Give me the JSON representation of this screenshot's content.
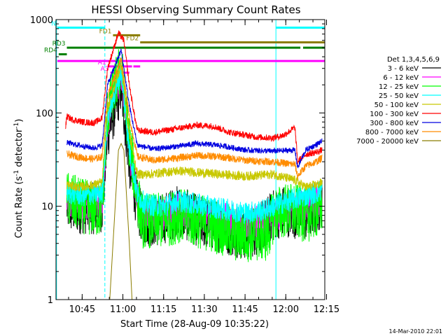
{
  "chart_data": {
    "type": "line",
    "title": "HESSI Observing Summary Count Rates",
    "xlabel": "Start Time (28-Aug-09 10:35:22)",
    "ylabel": "Count Rate (s⁻¹ detector⁻¹)",
    "ylabel_parts": {
      "pre": "Count Rate (s",
      "sup1": "-1",
      "mid": " detector",
      "sup2": "-1",
      "post": ")"
    },
    "yscale": "log",
    "ylim": [
      1,
      1000
    ],
    "xlim_minutes_from_start": [
      0,
      99
    ],
    "x_ticks": [
      "10:45",
      "11:00",
      "11:15",
      "11:30",
      "11:45",
      "12:00",
      "12:15"
    ],
    "y_ticks": [
      "1",
      "10",
      "100",
      "1000"
    ],
    "timestamp": "14-Mar-2010 22:01",
    "legend": {
      "title": "Det 1,3,4,5,6,9",
      "entries": [
        {
          "label": "3 - 6 keV",
          "color": "#000000"
        },
        {
          "label": "6 - 12 keV",
          "color": "#ff00ff"
        },
        {
          "label": "12 - 25 keV",
          "color": "#00ff00"
        },
        {
          "label": "25 - 50 keV",
          "color": "#00ffff"
        },
        {
          "label": "50 - 100 keV",
          "color": "#c8c800"
        },
        {
          "label": "100 - 300 keV",
          "color": "#ff0000"
        },
        {
          "label": "300 - 800 keV",
          "color": "#0000e0"
        },
        {
          "label": "800 - 7000 keV",
          "color": "#ff8c00"
        },
        {
          "label": "7000 - 20000 keV",
          "color": "#8b7d00"
        }
      ]
    },
    "series": [
      {
        "name": "3 - 6 keV",
        "color": "#000000",
        "noise": 0.28,
        "points": [
          [
            4,
            10
          ],
          [
            6,
            9.5
          ],
          [
            10,
            9.5
          ],
          [
            14,
            9.5
          ],
          [
            17,
            10
          ],
          [
            19,
            60
          ],
          [
            24,
            190
          ],
          [
            27,
            30
          ],
          [
            30,
            10
          ],
          [
            32,
            7
          ],
          [
            38,
            7
          ],
          [
            45,
            9
          ],
          [
            52,
            7
          ],
          [
            60,
            6
          ],
          [
            70,
            5
          ],
          [
            76,
            6
          ],
          [
            80,
            8
          ],
          [
            84,
            9
          ],
          [
            88,
            8.5
          ],
          [
            92,
            8
          ],
          [
            96,
            10
          ],
          [
            98,
            11
          ]
        ]
      },
      {
        "name": "6 - 12 keV",
        "color": "#ff00ff",
        "noise": 0.18,
        "points": [
          [
            4,
            12
          ],
          [
            10,
            11
          ],
          [
            17,
            11
          ],
          [
            19,
            80
          ],
          [
            24,
            270
          ],
          [
            27,
            40
          ],
          [
            30,
            12
          ],
          [
            32,
            8.5
          ],
          [
            40,
            8
          ],
          [
            45,
            9.5
          ],
          [
            52,
            8
          ],
          [
            60,
            7.5
          ],
          [
            70,
            6.5
          ],
          [
            76,
            7
          ],
          [
            80,
            8
          ],
          [
            84,
            9
          ],
          [
            88,
            9.5
          ],
          [
            92,
            10
          ],
          [
            96,
            11
          ],
          [
            98,
            12
          ]
        ]
      },
      {
        "name": "12 - 25 keV",
        "color": "#00ff00",
        "noise": 0.3,
        "points": [
          [
            4,
            12
          ],
          [
            10,
            10
          ],
          [
            16,
            9
          ],
          [
            17,
            11
          ],
          [
            19,
            100
          ],
          [
            24,
            320
          ],
          [
            27,
            50
          ],
          [
            30,
            12
          ],
          [
            32,
            7
          ],
          [
            40,
            7
          ],
          [
            45,
            8
          ],
          [
            52,
            7
          ],
          [
            60,
            6
          ],
          [
            66,
            5
          ],
          [
            74,
            5
          ],
          [
            78,
            5
          ],
          [
            80,
            8
          ],
          [
            84,
            9
          ],
          [
            88,
            9
          ],
          [
            92,
            8
          ],
          [
            96,
            9
          ],
          [
            98,
            10
          ]
        ]
      },
      {
        "name": "25 - 50 keV",
        "color": "#00ffff",
        "noise": 0.12,
        "points": [
          [
            4,
            14
          ],
          [
            10,
            13
          ],
          [
            17,
            14
          ],
          [
            19,
            90
          ],
          [
            24,
            280
          ],
          [
            27,
            40
          ],
          [
            30,
            13
          ],
          [
            33,
            10.5
          ],
          [
            40,
            10
          ],
          [
            45,
            11.5
          ],
          [
            52,
            10.5
          ],
          [
            60,
            9.5
          ],
          [
            70,
            8.5
          ],
          [
            76,
            9
          ],
          [
            80,
            10
          ],
          [
            84,
            11
          ],
          [
            88,
            12
          ],
          [
            92,
            13
          ],
          [
            96,
            14
          ],
          [
            98,
            15
          ]
        ]
      },
      {
        "name": "50 - 100 keV",
        "color": "#c8c800",
        "noise": 0.05,
        "points": [
          [
            4,
            17
          ],
          [
            8,
            16
          ],
          [
            14,
            17
          ],
          [
            17,
            18
          ],
          [
            19,
            110
          ],
          [
            24,
            330
          ],
          [
            27,
            60
          ],
          [
            30,
            22
          ],
          [
            34,
            22
          ],
          [
            45,
            24
          ],
          [
            52,
            23
          ],
          [
            60,
            22
          ],
          [
            70,
            21
          ],
          [
            80,
            22
          ],
          [
            88,
            19
          ],
          [
            92,
            16
          ],
          [
            96,
            17
          ],
          [
            98,
            18
          ]
        ]
      },
      {
        "name": "100 - 300 keV",
        "color": "#ff0000",
        "noise": 0.035,
        "points": [
          [
            3.5,
            70
          ],
          [
            4,
            92
          ],
          [
            6,
            85
          ],
          [
            10,
            80
          ],
          [
            14,
            78
          ],
          [
            17,
            88
          ],
          [
            19,
            300
          ],
          [
            23,
            720
          ],
          [
            25,
            600
          ],
          [
            27,
            200
          ],
          [
            29,
            90
          ],
          [
            30,
            65
          ],
          [
            36,
            62
          ],
          [
            42,
            66
          ],
          [
            52,
            74
          ],
          [
            58,
            72
          ],
          [
            64,
            62
          ],
          [
            74,
            55
          ],
          [
            80,
            54
          ],
          [
            84,
            58
          ],
          [
            88,
            70
          ],
          [
            89,
            30
          ],
          [
            92,
            36
          ],
          [
            96,
            38
          ],
          [
            98,
            40
          ]
        ]
      },
      {
        "name": "300 - 800 keV",
        "color": "#0000e0",
        "noise": 0.03,
        "points": [
          [
            4,
            48
          ],
          [
            10,
            44
          ],
          [
            14,
            42
          ],
          [
            17,
            45
          ],
          [
            19,
            200
          ],
          [
            24,
            470
          ],
          [
            27,
            120
          ],
          [
            30,
            45
          ],
          [
            36,
            41
          ],
          [
            45,
            44
          ],
          [
            52,
            47
          ],
          [
            60,
            45
          ],
          [
            70,
            40
          ],
          [
            80,
            39
          ],
          [
            88,
            40
          ],
          [
            89,
            26
          ],
          [
            92,
            40
          ],
          [
            96,
            46
          ],
          [
            98,
            50
          ]
        ]
      },
      {
        "name": "800 - 7000 keV",
        "color": "#ff8c00",
        "noise": 0.04,
        "points": [
          [
            4,
            36
          ],
          [
            10,
            33
          ],
          [
            14,
            32
          ],
          [
            17,
            34
          ],
          [
            19,
            150
          ],
          [
            24,
            380
          ],
          [
            27,
            90
          ],
          [
            30,
            34
          ],
          [
            36,
            31
          ],
          [
            45,
            33
          ],
          [
            52,
            35
          ],
          [
            60,
            34
          ],
          [
            70,
            31
          ],
          [
            80,
            30
          ],
          [
            88,
            28
          ],
          [
            89,
            21
          ],
          [
            92,
            27
          ],
          [
            96,
            30
          ],
          [
            98,
            33
          ]
        ]
      },
      {
        "name": "7000 - 20000 keV",
        "color": "#8b7d00",
        "noise": 0.0,
        "points": [
          [
            19.8,
            1
          ],
          [
            21,
            4
          ],
          [
            23,
            40
          ],
          [
            24,
            47
          ],
          [
            25,
            40
          ],
          [
            27,
            4
          ],
          [
            28,
            1
          ]
        ]
      }
    ],
    "bars": [
      {
        "label": "N",
        "label_color": "#00ffff",
        "color": "#00ffff",
        "y": 820,
        "segments": [
          [
            0.5,
            18
          ],
          [
            81,
            99
          ]
        ]
      },
      {
        "label": "FD1",
        "label_color": "#8b7d00",
        "color": "#8b7d00",
        "y": 680,
        "segments": [
          [
            21,
            31
          ]
        ]
      },
      {
        "label": "FD2",
        "label_color": "#8b7d00",
        "color": "#8b7d00",
        "y": 570,
        "segments": [
          [
            31,
            99
          ]
        ]
      },
      {
        "label": "RD3",
        "label_color": "#008000",
        "color": "#008000",
        "y": 500,
        "segments": [
          [
            4,
            90
          ],
          [
            91,
            99
          ]
        ]
      },
      {
        "label": "RD4",
        "label_color": "#008000",
        "color": "#008000",
        "y": 425,
        "segments": [
          [
            1,
            4
          ]
        ]
      },
      {
        "label": "",
        "label_color": "#ff00ff",
        "color": "#ff00ff",
        "y": 360,
        "segments": [
          [
            0.5,
            99
          ]
        ]
      },
      {
        "label": "A1",
        "label_color": "#ff00ff",
        "color": "#ff00ff",
        "y": 315,
        "segments": [
          [
            19,
            28
          ],
          [
            28.5,
            31
          ]
        ]
      },
      {
        "label": "A3",
        "label_color": "#ff00ff",
        "color": "#ff00ff",
        "y": 270,
        "segments": [
          [
            20,
            27
          ]
        ]
      }
    ],
    "saa_lines_dashed_minutes": [
      18,
      99
    ],
    "saa_lines_solid_minutes": [
      0.2,
      81
    ]
  }
}
